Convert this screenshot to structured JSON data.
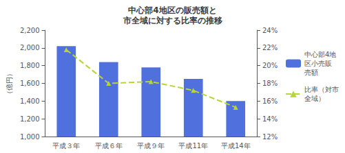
{
  "chart_data": {
    "type": "bar",
    "title": "中心部4地区の販売額と\n市全域に対する比率の推移",
    "categories": [
      "平成３年",
      "平成６年",
      "平成９年",
      "平成11年",
      "平成14年"
    ],
    "series": [
      {
        "name": "中心部4地\n区小売販\n売額",
        "type": "bar",
        "values": [
          2020,
          1840,
          1780,
          1650,
          1400
        ]
      },
      {
        "name": "比率（対市\n全域）",
        "type": "line",
        "axis": "y2",
        "marker": "triangle",
        "line_style": "dashed",
        "values": [
          21.8,
          18.0,
          18.2,
          17.2,
          15.3
        ]
      }
    ],
    "ylabel": "（億円）",
    "ylim": [
      1000,
      2200
    ],
    "yticks": [
      {
        "value": 1000,
        "label": "1,000"
      },
      {
        "value": 1200,
        "label": "1,200"
      },
      {
        "value": 1400,
        "label": "1,400"
      },
      {
        "value": 1600,
        "label": "1,600"
      },
      {
        "value": 1800,
        "label": "1,800"
      },
      {
        "value": 2000,
        "label": "2,000"
      },
      {
        "value": 2200,
        "label": "2,200"
      }
    ],
    "y2lim": [
      12,
      24
    ],
    "y2ticks": [
      {
        "value": 12,
        "label": "12%"
      },
      {
        "value": 14,
        "label": "14%"
      },
      {
        "value": 16,
        "label": "16%"
      },
      {
        "value": 18,
        "label": "18%"
      },
      {
        "value": 20,
        "label": "20%"
      },
      {
        "value": 22,
        "label": "22%"
      },
      {
        "value": 24,
        "label": "24%"
      }
    ],
    "grid": false,
    "legend": "right"
  }
}
